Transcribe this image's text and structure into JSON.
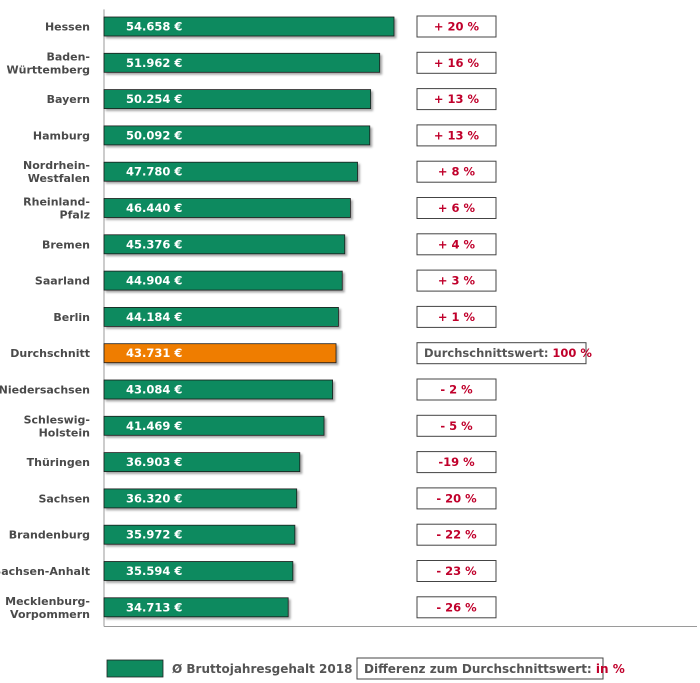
{
  "chart_data": {
    "type": "bar",
    "orientation": "horizontal",
    "categories": [
      "Hessen",
      "Baden-\nWürttemberg",
      "Bayern",
      "Hamburg",
      "Nordrhein-\nWestfalen",
      "Rheinland-\nPfalz",
      "Bremen",
      "Saarland",
      "Berlin",
      "Durchschnitt",
      "Niedersachsen",
      "Schleswig-\nHolstein",
      "Thüringen",
      "Sachsen",
      "Brandenburg",
      "Sachsen-Anhalt",
      "Mecklenburg-\nVorpommern"
    ],
    "values": [
      54658,
      51962,
      50254,
      50092,
      47780,
      46440,
      45376,
      44904,
      44184,
      43731,
      43084,
      41469,
      36903,
      36320,
      35972,
      35594,
      34713
    ],
    "value_labels": [
      "54.658 €",
      "51.962 €",
      "50.254 €",
      "50.092 €",
      "47.780 €",
      "46.440 €",
      "45.376 €",
      "44.904 €",
      "44.184 €",
      "43.731 €",
      "43.084 €",
      "41.469 €",
      "36.903 €",
      "36.320 €",
      "35.972 €",
      "35.594 €",
      "34.713 €"
    ],
    "differences": [
      "+ 20 %",
      "+ 16 %",
      "+ 13 %",
      "+ 13 %",
      "+ 8 %",
      "+ 6 %",
      "+ 4 %",
      "+ 3 %",
      "+ 1 %",
      "",
      "- 2 %",
      "- 5 %",
      "-19 %",
      "- 20 %",
      "- 22 %",
      "- 23 %",
      "- 26 %"
    ],
    "average_index": 9,
    "average_box": {
      "label": "Durchschnittswert: ",
      "value": "100 %"
    },
    "legend": {
      "bar_label": "Ø Bruttojahresgehalt 2018",
      "diff_label": "Differenz zum Durchschnittswert: ",
      "diff_unit": "in %"
    },
    "colors": {
      "bar": "#0f8a5e",
      "highlight": "#ef7d00",
      "diff_text": "#c0002b",
      "label_text": "#4a4a4a"
    },
    "grid": false,
    "legend_position": "bottom"
  }
}
